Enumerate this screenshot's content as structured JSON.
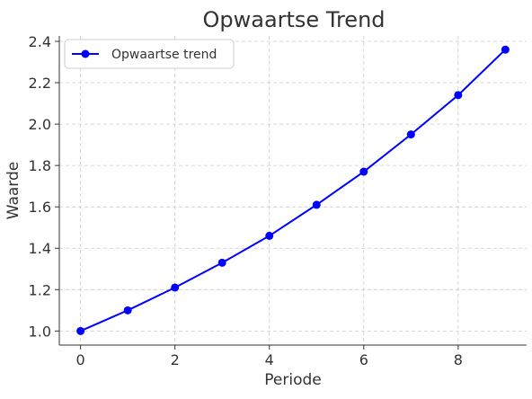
{
  "chart_data": {
    "type": "line",
    "title": "Opwaartse Trend",
    "xlabel": "Periode",
    "ylabel": "Waarde",
    "xlim": [
      -0.45,
      9.45
    ],
    "ylim": [
      0.932,
      2.426
    ],
    "x_ticks": [
      0,
      2,
      4,
      6,
      8
    ],
    "y_ticks": [
      1.0,
      1.2,
      1.4,
      1.6,
      1.8,
      2.0,
      2.2,
      2.4
    ],
    "y_tick_labels": [
      "1.0",
      "1.2",
      "1.4",
      "1.6",
      "1.8",
      "2.0",
      "2.2",
      "2.4"
    ],
    "grid": true,
    "legend_position": "top-left",
    "series": [
      {
        "name": "Opwaartse trend",
        "color": "#0000ff",
        "marker": "circle",
        "x": [
          0,
          1,
          2,
          3,
          4,
          5,
          6,
          7,
          8,
          9
        ],
        "y": [
          1.0,
          1.1,
          1.21,
          1.33,
          1.46,
          1.61,
          1.77,
          1.95,
          2.14,
          2.36
        ]
      }
    ]
  }
}
